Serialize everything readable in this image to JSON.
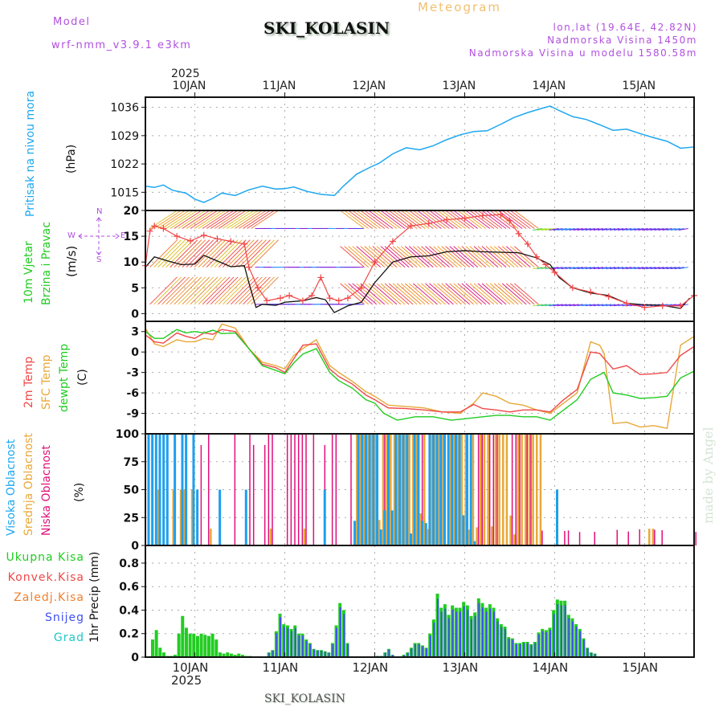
{
  "header": {
    "model_label": "Model",
    "model_name": "wrf-nmm_v3.9.1 e3km",
    "station": "SKI_KOLASIN",
    "meteogram": "Meteogram",
    "lonlat": "lon,lat (19.64E, 42.82N)",
    "elevation": "Nadmorska Visina 1450m",
    "model_elevation": "Nadmorska Visina u modelu 1580.58m"
  },
  "footer": {
    "station": "SKI_KOLASIN",
    "watermark": "made by Angel"
  },
  "time_axis": {
    "year": "2025",
    "days": [
      "10JAN",
      "11JAN",
      "12JAN",
      "13JAN",
      "14JAN",
      "15JAN"
    ],
    "start_day_offset": -0.55,
    "end_day_offset": 5.55
  },
  "compass": {
    "n": "N",
    "s": "S",
    "w": "W",
    "e": "E"
  },
  "colors": {
    "pressure": "#1ea7f0",
    "temp2m": "#f04848",
    "sfc": "#e8a838",
    "dewpt": "#22cc22",
    "high_cloud": "#1e9ff0",
    "mid_cloud": "#e8a838",
    "low_cloud": "#e0107a",
    "precip_total": "#22cc22",
    "precip_conv": "#f04848",
    "precip_frz": "#f08030",
    "snow": "#4050f0",
    "hail": "#20c8c8",
    "wind_speed": "#111111",
    "wind_gust": "#f04848"
  },
  "chart_data": [
    {
      "type": "line",
      "title": "Pritisak na nivou mora",
      "ylabel": "(hPa)",
      "yticks": [
        1015,
        1022,
        1029,
        1036
      ],
      "ylim": [
        1010.5,
        1038.5
      ],
      "series": [
        {
          "name": "Pritisak na nivou mora",
          "x": [
            -0.55,
            -0.45,
            -0.35,
            -0.25,
            -0.1,
            0,
            0.1,
            0.2,
            0.3,
            0.45,
            0.6,
            0.75,
            0.9,
            1.0,
            1.1,
            1.25,
            1.4,
            1.55,
            1.65,
            1.8,
            1.95,
            2.05,
            2.2,
            2.35,
            2.5,
            2.65,
            2.8,
            2.95,
            3.1,
            3.25,
            3.4,
            3.55,
            3.7,
            3.85,
            3.95,
            4.05,
            4.2,
            4.35,
            4.5,
            4.65,
            4.8,
            4.95,
            5.1,
            5.25,
            5.4,
            5.55
          ],
          "values": [
            1016.5,
            1016.2,
            1016.8,
            1015.5,
            1014.8,
            1013.3,
            1012.5,
            1013.5,
            1014.8,
            1014.2,
            1015.6,
            1016.5,
            1015.8,
            1015.9,
            1016.3,
            1015.2,
            1014.5,
            1014.2,
            1016.5,
            1019.5,
            1021.2,
            1022.2,
            1024.5,
            1026,
            1025.5,
            1026.5,
            1028.0,
            1029.2,
            1030,
            1030.2,
            1031.8,
            1033.5,
            1034.7,
            1035.7,
            1036.3,
            1035.2,
            1033.7,
            1033,
            1031.7,
            1030.3,
            1030.6,
            1029.5,
            1028.5,
            1027.6,
            1025.9,
            1026.2
          ]
        }
      ]
    },
    {
      "type": "line",
      "title": "10m Vjetar Brzina i Pravac",
      "ylabel": "(m/s)",
      "yticks": [
        0,
        5,
        10,
        15,
        20
      ],
      "ylim": [
        -1.5,
        20
      ],
      "series": [
        {
          "name": "Brzina (speed)",
          "x": [
            -0.55,
            -0.45,
            -0.3,
            -0.15,
            0,
            0.1,
            0.25,
            0.4,
            0.55,
            0.6,
            0.68,
            0.75,
            0.9,
            1.0,
            1.2,
            1.35,
            1.45,
            1.55,
            1.7,
            1.85,
            2.0,
            2.2,
            2.4,
            2.6,
            2.8,
            3.0,
            3.2,
            3.4,
            3.6,
            3.8,
            3.95,
            4.05,
            4.2,
            4.4,
            4.6,
            4.8,
            5.0,
            5.2,
            5.4,
            5.5
          ],
          "values": [
            9,
            11,
            10.2,
            9.5,
            9.6,
            11.3,
            10.2,
            9.1,
            9.3,
            6,
            1.2,
            1.8,
            1.6,
            2.2,
            2.5,
            3.1,
            2.7,
            0.2,
            1.5,
            2.2,
            6,
            10,
            11,
            11.2,
            12,
            12.2,
            12,
            11.9,
            11.8,
            10.8,
            9.5,
            7,
            5,
            4,
            3.5,
            2,
            1.7,
            1.6,
            1.0,
            3.0
          ]
        },
        {
          "name": "Udar (gust)",
          "x": [
            -0.55,
            -0.5,
            -0.45,
            -0.35,
            -0.2,
            -0.05,
            0.1,
            0.25,
            0.4,
            0.55,
            0.6,
            0.7,
            0.8,
            0.95,
            1.05,
            1.2,
            1.3,
            1.4,
            1.5,
            1.6,
            1.7,
            1.85,
            2.0,
            2.2,
            2.4,
            2.6,
            2.8,
            3.0,
            3.2,
            3.4,
            3.5,
            3.6,
            3.7,
            3.8,
            3.9,
            4.0,
            4.2,
            4.4,
            4.6,
            4.8,
            5.0,
            5.2,
            5.4,
            5.55
          ],
          "values": [
            9.3,
            16,
            17,
            16.5,
            15,
            14.1,
            15.2,
            14.5,
            14,
            13.5,
            9,
            5,
            2.5,
            3,
            3.5,
            2.5,
            3.5,
            7,
            3,
            2.5,
            3,
            5,
            10,
            14,
            17,
            17.5,
            18.2,
            18.5,
            19.0,
            19.2,
            18.0,
            15.5,
            13.5,
            11,
            9.5,
            8,
            5,
            4.2,
            3.3,
            2,
            1.2,
            1.5,
            1.5,
            3.5
          ]
        }
      ]
    },
    {
      "type": "line",
      "title": "2m Temp / SFC Temp / dewpt Temp",
      "ylabel": "(C)",
      "yticks": [
        -9,
        -6,
        -3,
        0,
        3
      ],
      "ylim": [
        -12,
        4.5
      ],
      "series": [
        {
          "name": "2m Temp",
          "x": [
            -0.55,
            -0.45,
            -0.35,
            -0.2,
            -0.1,
            0,
            0.1,
            0.2,
            0.3,
            0.45,
            0.6,
            0.75,
            0.9,
            1.0,
            1.1,
            1.2,
            1.35,
            1.5,
            1.6,
            1.75,
            1.9,
            2.0,
            2.15,
            2.35,
            2.55,
            2.75,
            2.95,
            3.1,
            3.2,
            3.35,
            3.5,
            3.65,
            3.8,
            3.95,
            4.1,
            4.25,
            4.4,
            4.5,
            4.65,
            4.8,
            4.95,
            5.1,
            5.25,
            5.4,
            5.55
          ],
          "values": [
            2.5,
            1.5,
            1.3,
            2.8,
            2.3,
            2.0,
            2.8,
            2.6,
            3.3,
            3.0,
            0.5,
            -1.8,
            -2.3,
            -3.0,
            -1.0,
            1.0,
            1.2,
            -2.5,
            -3.6,
            -4.7,
            -6.3,
            -7.0,
            -8.2,
            -8.3,
            -8.5,
            -8.8,
            -8.8,
            -7.7,
            -8.3,
            -8.5,
            -8.8,
            -8.5,
            -8.5,
            -8.8,
            -7.0,
            -5.5,
            0,
            -0.2,
            -2.5,
            -2.0,
            -3.3,
            -3.2,
            -3.0,
            -0.5,
            0.8
          ]
        },
        {
          "name": "SFC Temp",
          "x": [
            -0.55,
            -0.45,
            -0.35,
            -0.2,
            -0.1,
            0,
            0.1,
            0.2,
            0.3,
            0.45,
            0.6,
            0.75,
            0.9,
            1.0,
            1.1,
            1.2,
            1.35,
            1.5,
            1.6,
            1.75,
            1.9,
            2.0,
            2.15,
            2.35,
            2.55,
            2.75,
            2.95,
            3.1,
            3.2,
            3.35,
            3.5,
            3.65,
            3.8,
            3.95,
            4.1,
            4.25,
            4.4,
            4.5,
            4.55,
            4.65,
            4.8,
            4.95,
            5.1,
            5.25,
            5.4,
            5.55
          ],
          "values": [
            3.5,
            1.2,
            0.8,
            1.8,
            1.5,
            1.5,
            2.0,
            1.8,
            4.1,
            3.5,
            0.5,
            -1.5,
            -2.0,
            -2.5,
            -0.5,
            0.5,
            1.8,
            -2.0,
            -3.0,
            -4.3,
            -5.8,
            -6.5,
            -7.8,
            -8.0,
            -8.2,
            -8.8,
            -9.0,
            -7.5,
            -6.0,
            -6.5,
            -7.5,
            -7.8,
            -8.5,
            -9.0,
            -7.5,
            -6.0,
            1.5,
            1.0,
            -0.2,
            -10.5,
            -10.3,
            -11.0,
            -10.8,
            -11.2,
            1.0,
            2.3
          ]
        },
        {
          "name": "dewpt Temp",
          "x": [
            -0.55,
            -0.45,
            -0.35,
            -0.2,
            -0.1,
            0,
            0.1,
            0.2,
            0.3,
            0.45,
            0.6,
            0.75,
            0.9,
            1.0,
            1.1,
            1.2,
            1.35,
            1.5,
            1.6,
            1.75,
            1.9,
            2.0,
            2.1,
            2.25,
            2.45,
            2.65,
            2.85,
            3.0,
            3.2,
            3.35,
            3.5,
            3.65,
            3.8,
            3.95,
            4.1,
            4.25,
            4.4,
            4.55,
            4.65,
            4.8,
            4.95,
            5.1,
            5.25,
            5.4,
            5.55
          ],
          "values": [
            3.0,
            2.0,
            2.0,
            3.3,
            2.8,
            3.0,
            2.8,
            3.2,
            2.7,
            2.8,
            0.5,
            -2.0,
            -2.7,
            -3.2,
            -1.6,
            -0.3,
            0.5,
            -3.0,
            -4.2,
            -5.3,
            -7.0,
            -7.5,
            -9.0,
            -10.0,
            -9.5,
            -9.5,
            -10.0,
            -9.8,
            -9.5,
            -9.3,
            -9.3,
            -9.5,
            -9.5,
            -10.0,
            -8.5,
            -7.0,
            -4.0,
            -3.0,
            -6.0,
            -6.3,
            -6.8,
            -6.7,
            -6.5,
            -3.8,
            -2.8
          ]
        }
      ]
    },
    {
      "type": "bar",
      "title": "Visoka Oblacnost / Srednja Oblacnost / Niska Oblacnost",
      "ylabel": "(%)",
      "yticks": [
        0,
        25,
        50,
        75,
        100
      ],
      "ylim": [
        0,
        100
      ],
      "series": [
        {
          "name": "Visoka Oblacnost",
          "note": "~100% from 9.6 to 10.0 JAN and 11.75–13.8 JAN, intermittent partial values"
        },
        {
          "name": "Srednja Oblacnost",
          "note": "~100% 11.75–13.75 JAN, 50% near 10.0 JAN"
        },
        {
          "name": "Niska Oblacnost",
          "note": "frequent 100% spikes 10–11.5 JAN, small values 14.2–15.5 JAN"
        }
      ]
    },
    {
      "type": "bar",
      "title": "1hr Precip",
      "ylabel": "1hr Precip (mm)",
      "yticks": [
        0,
        0.2,
        0.4,
        0.6,
        0.8
      ],
      "ylim": [
        0,
        0.95
      ],
      "legend": [
        "Ukupna Kisa",
        "Konvek.Kisa",
        "Zaledj.Kisa",
        "Snijeg",
        "Grad"
      ],
      "series": [
        {
          "name": "Ukupna Kisa",
          "x_step_hours": 1,
          "x_start": -0.47,
          "values": [
            0.15,
            0.23,
            0.08,
            0.04,
            0.01,
            0.01,
            0.02,
            0.2,
            0.35,
            0.25,
            0.2,
            0.2,
            0.18,
            0.2,
            0.19,
            0.18,
            0.2,
            0.15,
            0.04,
            0.03,
            0.04,
            0.03,
            0.02,
            0.03,
            0.02,
            0.01,
            0.01,
            0,
            0,
            0,
            0,
            0.04,
            0.06,
            0.22,
            0.37,
            0.28,
            0.27,
            0.24,
            0.27,
            0.2,
            0.2,
            0.15,
            0.12,
            0.07,
            0.06,
            0.06,
            0.05,
            0.04,
            0.12,
            0.27,
            0.46,
            0.4,
            0.12,
            0,
            0,
            0,
            0,
            0,
            0,
            0,
            0.01,
            0.01,
            0.04,
            0.07,
            0.02,
            0,
            0,
            0.02,
            0.04,
            0.08,
            0.12,
            0.12,
            0.1,
            0.08,
            0.2,
            0.32,
            0.54,
            0.42,
            0.45,
            0.36,
            0.44,
            0.42,
            0.42,
            0.47,
            0.44,
            0.35,
            0.38,
            0.5,
            0.46,
            0.42,
            0.45,
            0.42,
            0.33,
            0.28,
            0.26,
            0.17,
            0.16,
            0.12,
            0.12,
            0.13,
            0.13,
            0.11,
            0.13,
            0.21,
            0.24,
            0.23,
            0.25,
            0.4,
            0.49,
            0.48,
            0.48,
            0.36,
            0.33,
            0.28,
            0.24,
            0.16,
            0.08,
            0.04,
            0.03
          ]
        },
        {
          "name": "Snijeg",
          "note": "dominant share of precipitation after 10.8 JAN"
        }
      ]
    }
  ],
  "panels": {
    "pressure": {
      "title": "Pritisak na nivou mora",
      "unit": "(hPa)"
    },
    "wind": {
      "title1": "10m Vjetar",
      "title2": "Brzina i Pravac",
      "unit": "(m/s)"
    },
    "temp": {
      "title1": "2m Temp",
      "title2": "SFC Temp",
      "title3": "dewpt Temp",
      "unit": "(C)"
    },
    "cloud": {
      "title1": "Visoka Oblacnost",
      "title2": "Srednja Oblacnost",
      "title3": "Niska Oblacnost",
      "unit": "(%)"
    },
    "precip": {
      "unit": "1hr Precip (mm)",
      "legend": [
        "Ukupna Kisa",
        "Konvek.Kisa",
        "Zaledj.Kisa",
        "Snijeg",
        "Grad"
      ]
    }
  }
}
